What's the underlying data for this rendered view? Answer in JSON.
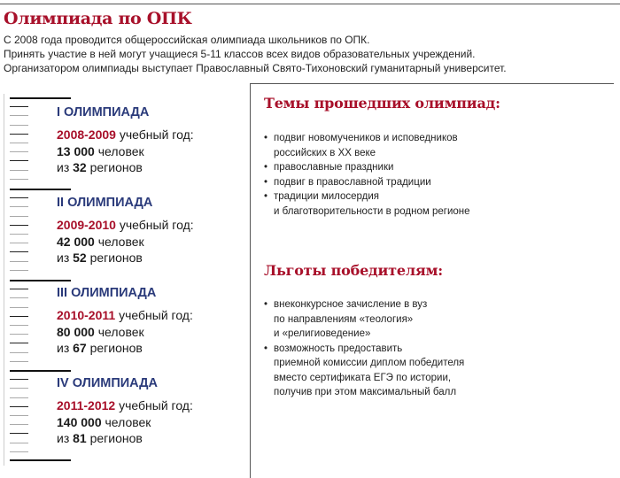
{
  "title": "Олимпиада по ОПК",
  "intro": [
    "С 2008 года проводится общероссийская олимпиада школьников по ОПК.",
    "Принять участие в ней могут учащиеся 5-11 классов всех видов образовательных учреждений.",
    "Организатором олимпиады выступает Православный Свято-Тихоновский гуманитарный университет."
  ],
  "olympiads": [
    {
      "heading": "I ОЛИМПИАДА",
      "years": "2008-2009",
      "year_suffix": " учебный год:",
      "people": "13 000",
      "people_suffix": " человек",
      "regions_prefix": "из ",
      "regions": "32",
      "regions_suffix": " регионов"
    },
    {
      "heading": "II ОЛИМПИАДА",
      "years": "2009-2010",
      "year_suffix": " учебный год:",
      "people": "42 000",
      "people_suffix": " человек",
      "regions_prefix": "из ",
      "regions": "52",
      "regions_suffix": " регионов"
    },
    {
      "heading": "III ОЛИМПИАДА",
      "years": "2010-2011",
      "year_suffix": " учебный год:",
      "people": "80 000",
      "people_suffix": " человек",
      "regions_prefix": "из ",
      "regions": "67",
      "regions_suffix": " регионов"
    },
    {
      "heading": "IV ОЛИМПИАДА",
      "years": "2011-2012",
      "year_suffix": " учебный год:",
      "people": "140 000",
      "people_suffix": " человек",
      "regions_prefix": "из ",
      "regions": "81",
      "regions_suffix": " регионов"
    }
  ],
  "topics": {
    "heading": "Темы прошедших олимпиад:",
    "items": [
      [
        "подвиг новомучеников и исповедников",
        "российских в ХХ веке"
      ],
      [
        "православные праздники"
      ],
      [
        "подвиг в православной традиции"
      ],
      [
        "традиции милосердия",
        "и благотворительности в родном регионе"
      ]
    ]
  },
  "benefits": {
    "heading": "Льготы победителям:",
    "items": [
      [
        "внеконкурсное зачисление в вуз",
        "по направлениям «теология»",
        "и «религиоведение»"
      ],
      [
        "возможность предоставить",
        "приемной комиссии диплом победителя",
        "вместо сертификата ЕГЭ по истории,",
        "получив при этом максимальный балл"
      ]
    ]
  },
  "colors": {
    "accent_red": "#a8102a",
    "heading_navy": "#2a3a7a"
  }
}
